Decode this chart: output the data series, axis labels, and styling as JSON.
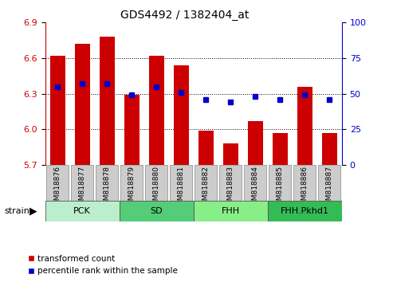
{
  "title": "GDS4492 / 1382404_at",
  "samples": [
    "GSM818876",
    "GSM818877",
    "GSM818878",
    "GSM818879",
    "GSM818880",
    "GSM818881",
    "GSM818882",
    "GSM818883",
    "GSM818884",
    "GSM818885",
    "GSM818886",
    "GSM818887"
  ],
  "red_values": [
    6.62,
    6.72,
    6.78,
    6.29,
    6.62,
    6.54,
    5.99,
    5.88,
    6.07,
    5.97,
    6.36,
    5.97
  ],
  "blue_values": [
    55,
    57,
    57,
    49,
    55,
    51,
    46,
    44,
    48,
    46,
    49,
    46
  ],
  "ylim_left": [
    5.7,
    6.9
  ],
  "ylim_right": [
    0,
    100
  ],
  "yticks_left": [
    5.7,
    6.0,
    6.3,
    6.6,
    6.9
  ],
  "yticks_right": [
    0,
    25,
    50,
    75,
    100
  ],
  "grid_yticks": [
    6.0,
    6.3,
    6.6
  ],
  "groups": [
    {
      "label": "PCK",
      "start": 0,
      "end": 3,
      "color": "#bbeecc"
    },
    {
      "label": "SD",
      "start": 3,
      "end": 6,
      "color": "#55cc77"
    },
    {
      "label": "FHH",
      "start": 6,
      "end": 9,
      "color": "#88ee88"
    },
    {
      "label": "FHH.Pkhd1",
      "start": 9,
      "end": 12,
      "color": "#33bb55"
    }
  ],
  "bar_color": "#cc0000",
  "dot_color": "#0000cc",
  "left_tick_color": "#cc0000",
  "right_tick_color": "#0000cc",
  "xtick_bg_color": "#cccccc",
  "xtick_edge_color": "#888888",
  "legend_items": [
    {
      "color": "#cc0000",
      "label": "transformed count"
    },
    {
      "color": "#0000cc",
      "label": "percentile rank within the sample"
    }
  ]
}
